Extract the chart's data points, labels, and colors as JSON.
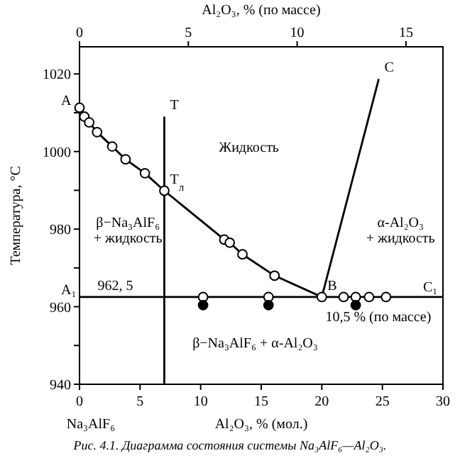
{
  "chart_data": {
    "type": "line",
    "xlabel": "Al₂O₃, % (мол.)",
    "x2label": "Al₂O₃, % (по массе)",
    "ylabel": "Температура, °C",
    "xlim": [
      0,
      30
    ],
    "xticks": [
      0,
      5,
      10,
      15,
      20,
      25,
      30
    ],
    "x2lim": [
      0,
      16.7
    ],
    "x2ticks": [
      0,
      5,
      10,
      15
    ],
    "ylim": [
      940,
      1027
    ],
    "yticks": [
      940,
      {
        "value": 950,
        "label": null
      },
      960,
      {
        "value": 970,
        "label": null
      },
      980,
      {
        "value": 990,
        "label": null
      },
      1000,
      {
        "value": 1010,
        "label": null
      },
      1020
    ],
    "grid": false,
    "series": [
      {
        "color": "#000000",
        "x": [
          0,
          0.4,
          0.8,
          1.45,
          2.7,
          3.8,
          5.4,
          7.0,
          11.95,
          12.4,
          13.45,
          16.1,
          20
        ],
        "values": [
          1011.3,
          1009,
          1007.5,
          1005,
          1001.3,
          998,
          994.4,
          989.9,
          977.3,
          976.5,
          973.5,
          968,
          962.5
        ]
      },
      {
        "color": "#000000",
        "x": [
          20,
          24.7
        ],
        "values": [
          962.5,
          1018.7
        ]
      },
      {
        "color": "#000000",
        "x": [
          0,
          30
        ],
        "values": [
          962.5,
          962.5
        ]
      },
      {
        "color": "#000000",
        "x": [
          7,
          7
        ],
        "values": [
          940,
          1009
        ]
      },
      {
        "type": "scatter",
        "color": "#ffffff",
        "x": [
          0,
          0.4,
          0.8,
          1.45,
          2.7,
          3.8,
          5.4,
          7.0,
          11.95,
          12.4,
          13.45,
          16.1,
          20,
          10.2,
          15.6,
          21.8,
          22.8,
          23.9,
          25.3
        ],
        "values": [
          1011.3,
          1009,
          1007.5,
          1005,
          1001.3,
          998,
          994.4,
          989.9,
          977.3,
          976.5,
          973.5,
          968,
          962.5,
          962.5,
          962.5,
          962.5,
          962.5,
          962.5,
          962.5
        ]
      },
      {
        "type": "scatter",
        "color": "#000000",
        "x": [
          10.2,
          15.6,
          22.8
        ],
        "values": [
          960.4,
          960.4,
          960.4
        ]
      }
    ],
    "annotations": [
      {
        "text": "A",
        "x": 0,
        "y": 1011.3
      },
      {
        "text": "T",
        "x": 7,
        "y": 1009
      },
      {
        "text": "T$_{л}$",
        "x": 7,
        "y": 989.9
      },
      {
        "text": "C",
        "x": 24.7,
        "y": 1018.7
      },
      {
        "text": "B",
        "x": 20,
        "y": 962.5
      },
      {
        "text": "A₁",
        "x": 0,
        "y": 962.5
      },
      {
        "text": "C₁",
        "x": 30,
        "y": 962.5
      },
      "Na₃AlF₆",
      "962, 5",
      "10,5 % (по массе)",
      "Жидкость",
      "β−Na₃AlF₆\n+ жидкость",
      "α-Al₂O₃\n+ жидкость",
      "β−Na₃AlF₆ + α-Al₂O₃",
      "Рис. 4.1. Диаграмма состояния системы Na₃AlF₆—Al₂O₃."
    ]
  }
}
